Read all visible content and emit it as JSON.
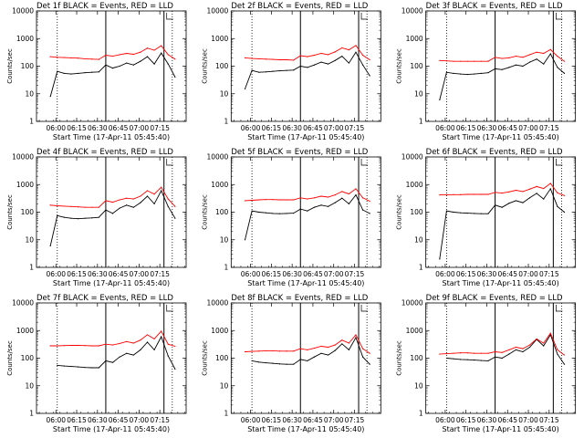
{
  "figure": {
    "x_tick_labels": [
      "06:00",
      "06:15",
      "06:30",
      "06:45",
      "07:00",
      "07:15"
    ],
    "y_tick_labels": [
      "1",
      "10",
      "100",
      "1000",
      "10000"
    ],
    "ylabel": "Counts/sec",
    "xlabel": "Start Time (17-Apr-11 05:45:40)"
  },
  "colors": {
    "events": "#000000",
    "lld": "#ff0000",
    "axes": "#000000",
    "background": "#ffffff"
  },
  "chart_data": [
    {
      "type": "line",
      "title": "Det 1f BLACK = Events, RED = LLD",
      "xlabel": "Start Time (17-Apr-11 05:45:40)",
      "ylabel": "Counts/sec",
      "y_scale": "log",
      "ylim": [
        1,
        10000
      ],
      "x_ticks": [
        "06:00",
        "06:15",
        "06:30",
        "06:45",
        "07:00",
        "07:15"
      ],
      "x_minutes": [
        0,
        5,
        10,
        15,
        20,
        25,
        30,
        35,
        40,
        45,
        50,
        55,
        60,
        65,
        70,
        75,
        80,
        85,
        90,
        95,
        100
      ],
      "series": [
        {
          "name": "Events",
          "color": "#000000",
          "values": [
            null,
            null,
            8,
            65,
            55,
            52,
            55,
            58,
            60,
            62,
            110,
            85,
            100,
            130,
            110,
            150,
            220,
            120,
            300,
            120,
            40
          ]
        },
        {
          "name": "LLD",
          "color": "#ff0000",
          "values": [
            null,
            null,
            220,
            210,
            205,
            200,
            195,
            185,
            180,
            175,
            250,
            230,
            260,
            290,
            270,
            320,
            450,
            380,
            550,
            260,
            180
          ]
        }
      ],
      "vertical_lines": [
        {
          "x_minute": 15,
          "style": "dotted"
        },
        {
          "x_minute": 50,
          "style": "solid"
        },
        {
          "x_minute": 92,
          "style": "solid"
        },
        {
          "x_minute": 98,
          "style": "dotted"
        }
      ]
    },
    {
      "type": "line",
      "title": "Det 2f BLACK = Events, RED = LLD",
      "xlabel": "Start Time (17-Apr-11 05:45:40)",
      "ylabel": "Counts/sec",
      "y_scale": "log",
      "ylim": [
        1,
        10000
      ],
      "x_ticks": [
        "06:00",
        "06:15",
        "06:30",
        "06:45",
        "07:00",
        "07:15"
      ],
      "x_minutes": [
        0,
        5,
        10,
        15,
        20,
        25,
        30,
        35,
        40,
        45,
        50,
        55,
        60,
        65,
        70,
        75,
        80,
        85,
        90,
        95,
        100
      ],
      "series": [
        {
          "name": "Events",
          "color": "#000000",
          "values": [
            null,
            null,
            15,
            70,
            60,
            62,
            65,
            68,
            70,
            72,
            100,
            90,
            110,
            140,
            120,
            160,
            230,
            130,
            320,
            110,
            45
          ]
        },
        {
          "name": "LLD",
          "color": "#ff0000",
          "values": [
            null,
            null,
            200,
            190,
            185,
            180,
            175,
            170,
            170,
            165,
            240,
            220,
            250,
            290,
            260,
            330,
            460,
            390,
            560,
            250,
            170
          ]
        }
      ],
      "vertical_lines": [
        {
          "x_minute": 15,
          "style": "dotted"
        },
        {
          "x_minute": 50,
          "style": "solid"
        },
        {
          "x_minute": 92,
          "style": "solid"
        },
        {
          "x_minute": 98,
          "style": "dotted"
        }
      ]
    },
    {
      "type": "line",
      "title": "Det 3f BLACK = Events, RED = LLD",
      "xlabel": "Start Time (17-Apr-11 05:45:40)",
      "ylabel": "Counts/sec",
      "y_scale": "log",
      "ylim": [
        1,
        10000
      ],
      "x_ticks": [
        "06:00",
        "06:15",
        "06:30",
        "06:45",
        "07:00",
        "07:15"
      ],
      "x_minutes": [
        0,
        5,
        10,
        15,
        20,
        25,
        30,
        35,
        40,
        45,
        50,
        55,
        60,
        65,
        70,
        75,
        80,
        85,
        90,
        95,
        100
      ],
      "series": [
        {
          "name": "Events",
          "color": "#000000",
          "values": [
            null,
            null,
            6,
            60,
            55,
            52,
            50,
            52,
            55,
            58,
            80,
            75,
            90,
            110,
            100,
            140,
            180,
            120,
            280,
            90,
            55
          ]
        },
        {
          "name": "LLD",
          "color": "#ff0000",
          "values": [
            null,
            null,
            160,
            155,
            150,
            150,
            150,
            150,
            150,
            150,
            210,
            190,
            200,
            230,
            210,
            260,
            320,
            290,
            400,
            230,
            150
          ]
        }
      ],
      "vertical_lines": [
        {
          "x_minute": 15,
          "style": "dotted"
        },
        {
          "x_minute": 50,
          "style": "solid"
        },
        {
          "x_minute": 92,
          "style": "solid"
        },
        {
          "x_minute": 98,
          "style": "dotted"
        }
      ]
    },
    {
      "type": "line",
      "title": "Det 4f BLACK = Events, RED = LLD",
      "xlabel": "Start Time (17-Apr-11 05:45:40)",
      "ylabel": "Counts/sec",
      "y_scale": "log",
      "ylim": [
        1,
        10000
      ],
      "x_ticks": [
        "06:00",
        "06:15",
        "06:30",
        "06:45",
        "07:00",
        "07:15"
      ],
      "x_minutes": [
        0,
        5,
        10,
        15,
        20,
        25,
        30,
        35,
        40,
        45,
        50,
        55,
        60,
        65,
        70,
        75,
        80,
        85,
        90,
        95,
        100
      ],
      "series": [
        {
          "name": "Events",
          "color": "#000000",
          "values": [
            null,
            null,
            6,
            75,
            65,
            60,
            58,
            60,
            62,
            65,
            120,
            90,
            140,
            180,
            150,
            220,
            380,
            200,
            600,
            160,
            60
          ]
        },
        {
          "name": "LLD",
          "color": "#ff0000",
          "values": [
            null,
            null,
            180,
            170,
            165,
            160,
            155,
            150,
            150,
            150,
            260,
            230,
            280,
            320,
            300,
            380,
            600,
            450,
            800,
            300,
            160
          ]
        }
      ],
      "vertical_lines": [
        {
          "x_minute": 15,
          "style": "dotted"
        },
        {
          "x_minute": 50,
          "style": "solid"
        },
        {
          "x_minute": 92,
          "style": "solid"
        },
        {
          "x_minute": 98,
          "style": "dotted"
        }
      ]
    },
    {
      "type": "line",
      "title": "Det 5f BLACK = Events, RED = LLD",
      "xlabel": "Start Time (17-Apr-11 05:45:40)",
      "ylabel": "Counts/sec",
      "y_scale": "log",
      "ylim": [
        1,
        10000
      ],
      "x_ticks": [
        "06:00",
        "06:15",
        "06:30",
        "06:45",
        "07:00",
        "07:15"
      ],
      "x_minutes": [
        0,
        5,
        10,
        15,
        20,
        25,
        30,
        35,
        40,
        45,
        50,
        55,
        60,
        65,
        70,
        75,
        80,
        85,
        90,
        95,
        100
      ],
      "series": [
        {
          "name": "Events",
          "color": "#000000",
          "values": [
            null,
            null,
            10,
            110,
            100,
            95,
            90,
            88,
            90,
            92,
            130,
            110,
            150,
            180,
            160,
            220,
            320,
            200,
            420,
            120,
            90
          ]
        },
        {
          "name": "LLD",
          "color": "#ff0000",
          "values": [
            null,
            null,
            260,
            270,
            280,
            285,
            285,
            280,
            280,
            280,
            330,
            300,
            330,
            380,
            350,
            420,
            560,
            460,
            700,
            330,
            250
          ]
        }
      ],
      "vertical_lines": [
        {
          "x_minute": 15,
          "style": "dotted"
        },
        {
          "x_minute": 50,
          "style": "solid"
        },
        {
          "x_minute": 92,
          "style": "solid"
        },
        {
          "x_minute": 98,
          "style": "dotted"
        }
      ]
    },
    {
      "type": "line",
      "title": "Det 6f BLACK = Events, RED = LLD",
      "xlabel": "Start Time (17-Apr-11 05:45:40)",
      "ylabel": "Counts/sec",
      "y_scale": "log",
      "ylim": [
        1,
        10000
      ],
      "x_ticks": [
        "06:00",
        "06:15",
        "06:30",
        "06:45",
        "07:00",
        "07:15"
      ],
      "x_minutes": [
        0,
        5,
        10,
        15,
        20,
        25,
        30,
        35,
        40,
        45,
        50,
        55,
        60,
        65,
        70,
        75,
        80,
        85,
        90,
        95,
        100
      ],
      "series": [
        {
          "name": "Events",
          "color": "#000000",
          "values": [
            null,
            null,
            2,
            110,
            100,
            95,
            92,
            90,
            88,
            88,
            180,
            150,
            210,
            260,
            220,
            330,
            480,
            300,
            700,
            160,
            100
          ]
        },
        {
          "name": "LLD",
          "color": "#ff0000",
          "values": [
            null,
            null,
            420,
            420,
            430,
            430,
            440,
            440,
            440,
            440,
            520,
            490,
            540,
            620,
            560,
            680,
            850,
            720,
            1100,
            500,
            400
          ]
        }
      ],
      "vertical_lines": [
        {
          "x_minute": 15,
          "style": "dotted"
        },
        {
          "x_minute": 50,
          "style": "solid"
        },
        {
          "x_minute": 92,
          "style": "solid"
        },
        {
          "x_minute": 98,
          "style": "dotted"
        }
      ]
    },
    {
      "type": "line",
      "title": "Det 7f BLACK = Events, RED = LLD",
      "xlabel": "Start Time (17-Apr-11 05:45:40)",
      "ylabel": "Counts/sec",
      "y_scale": "log",
      "ylim": [
        1,
        10000
      ],
      "x_ticks": [
        "06:00",
        "06:15",
        "06:30",
        "06:45",
        "07:00",
        "07:15"
      ],
      "x_minutes": [
        0,
        5,
        10,
        15,
        20,
        25,
        30,
        35,
        40,
        45,
        50,
        55,
        60,
        65,
        70,
        75,
        80,
        85,
        90,
        95,
        100
      ],
      "series": [
        {
          "name": "Events",
          "color": "#000000",
          "values": [
            null,
            null,
            null,
            55,
            52,
            50,
            48,
            46,
            45,
            45,
            80,
            70,
            110,
            150,
            130,
            200,
            380,
            200,
            600,
            120,
            40
          ]
        },
        {
          "name": "LLD",
          "color": "#ff0000",
          "values": [
            null,
            null,
            280,
            280,
            285,
            290,
            290,
            285,
            280,
            280,
            320,
            300,
            340,
            400,
            350,
            450,
            700,
            500,
            950,
            320,
            270
          ]
        }
      ],
      "vertical_lines": [
        {
          "x_minute": 15,
          "style": "dotted"
        },
        {
          "x_minute": 50,
          "style": "solid"
        },
        {
          "x_minute": 92,
          "style": "solid"
        },
        {
          "x_minute": 98,
          "style": "dotted"
        }
      ]
    },
    {
      "type": "line",
      "title": "Det 8f BLACK = Events, RED = LLD",
      "xlabel": "Start Time (17-Apr-11 05:45:40)",
      "ylabel": "Counts/sec",
      "y_scale": "log",
      "ylim": [
        1,
        10000
      ],
      "x_ticks": [
        "06:00",
        "06:15",
        "06:30",
        "06:45",
        "07:00",
        "07:15"
      ],
      "x_minutes": [
        0,
        5,
        10,
        15,
        20,
        25,
        30,
        35,
        40,
        45,
        50,
        55,
        60,
        65,
        70,
        75,
        80,
        85,
        90,
        95,
        100
      ],
      "series": [
        {
          "name": "Events",
          "color": "#000000",
          "values": [
            null,
            null,
            null,
            80,
            72,
            68,
            65,
            62,
            60,
            60,
            90,
            80,
            110,
            150,
            130,
            190,
            330,
            200,
            560,
            110,
            60
          ]
        },
        {
          "name": "LLD",
          "color": "#ff0000",
          "values": [
            null,
            null,
            170,
            175,
            180,
            185,
            185,
            180,
            180,
            180,
            220,
            200,
            230,
            270,
            250,
            300,
            450,
            350,
            700,
            220,
            150
          ]
        }
      ],
      "vertical_lines": [
        {
          "x_minute": 15,
          "style": "dotted"
        },
        {
          "x_minute": 50,
          "style": "solid"
        },
        {
          "x_minute": 92,
          "style": "solid"
        },
        {
          "x_minute": 98,
          "style": "dotted"
        }
      ]
    },
    {
      "type": "line",
      "title": "Det 9f BLACK = Events, RED = LLD",
      "xlabel": "Start Time (17-Apr-11 05:45:40)",
      "ylabel": "Counts/sec",
      "y_scale": "log",
      "ylim": [
        1,
        10000
      ],
      "x_ticks": [
        "06:00",
        "06:15",
        "06:30",
        "06:45",
        "07:00",
        "07:15"
      ],
      "x_minutes": [
        0,
        5,
        10,
        15,
        20,
        25,
        30,
        35,
        40,
        45,
        50,
        55,
        60,
        65,
        70,
        75,
        80,
        85,
        90,
        95,
        100
      ],
      "series": [
        {
          "name": "Events",
          "color": "#000000",
          "values": [
            null,
            null,
            null,
            100,
            95,
            90,
            88,
            85,
            82,
            80,
            110,
            100,
            140,
            200,
            170,
            250,
            480,
            280,
            700,
            140,
            60
          ]
        },
        {
          "name": "LLD",
          "color": "#ff0000",
          "values": [
            null,
            null,
            140,
            145,
            150,
            155,
            155,
            150,
            150,
            150,
            170,
            160,
            200,
            250,
            220,
            300,
            500,
            350,
            800,
            200,
            130
          ]
        }
      ],
      "vertical_lines": [
        {
          "x_minute": 15,
          "style": "dotted"
        },
        {
          "x_minute": 50,
          "style": "solid"
        },
        {
          "x_minute": 92,
          "style": "solid"
        },
        {
          "x_minute": 98,
          "style": "dotted"
        }
      ]
    }
  ]
}
